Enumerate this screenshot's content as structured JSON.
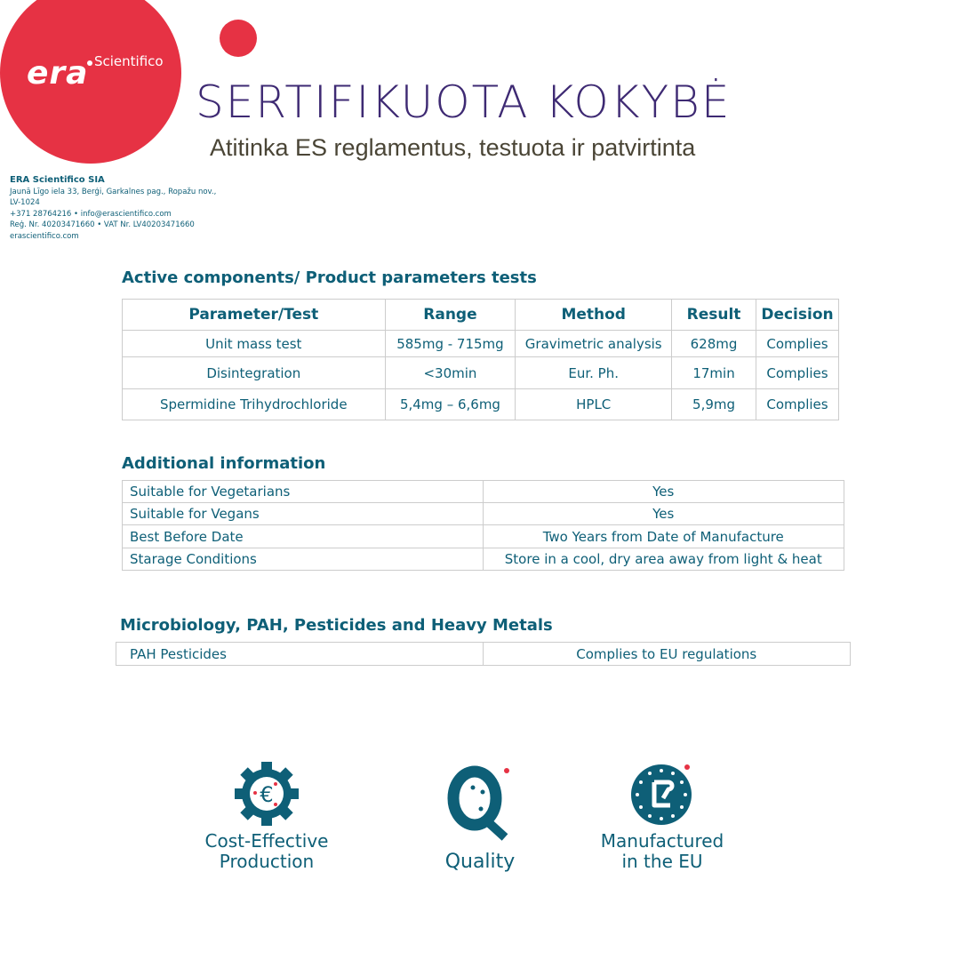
{
  "brand": {
    "logo_text": "era",
    "logo_sub": "Scientifico",
    "colors": {
      "red": "#e63244",
      "teal": "#0e5f77",
      "purple": "#3e2a73"
    }
  },
  "header": {
    "title": "SERTIFIKUOTA KOKYBĖ",
    "subtitle": "Atitinka ES reglamentus, testuota ir patvirtinta"
  },
  "company": {
    "name": "ERA Scientifico SIA",
    "address1": "Jaunā Līgo iela 33, Berģi, Garkalnes pag., Ropažu nov.,",
    "address2": "LV-1024",
    "contact": "+371 28764216 • info@erascientifico.com",
    "reg": "Reģ. Nr. 40203471660 • VAT Nr. LV40203471660",
    "web": "erascientifico.com"
  },
  "active": {
    "heading": "Active components/ Product parameters tests",
    "headers": [
      "Parameter/Test",
      "Range",
      "Method",
      "Result",
      "Decision"
    ],
    "rows": [
      [
        "Unit mass test",
        "585mg - 715mg",
        "Gravimetric analysis",
        "628mg",
        "Complies"
      ],
      [
        "Disintegration",
        "<30min",
        "Eur. Ph.",
        "17min",
        "Complies"
      ],
      [
        "Spermidine Trihydrochloride",
        "5,4mg – 6,6mg",
        "HPLC",
        "5,9mg",
        "Complies"
      ]
    ]
  },
  "additional": {
    "heading": "Additional information",
    "rows": [
      [
        "Suitable for Vegetarians",
        "Yes"
      ],
      [
        "Suitable for Vegans",
        "Yes"
      ],
      [
        "Best Before Date",
        "Two Years from Date of Manufacture"
      ],
      [
        "Starage Conditions",
        "Store in a cool, dry area away from light & heat"
      ]
    ]
  },
  "micro": {
    "heading": "Microbiology, PAH, Pesticides and Heavy Metals",
    "rows": [
      [
        "PAH Pesticides",
        "Complies to EU regulations"
      ]
    ]
  },
  "features": [
    {
      "icon": "gear-euro-icon",
      "l1": "Cost-Effective",
      "l2": "Production"
    },
    {
      "icon": "quality-q-icon",
      "l1": "Quality",
      "l2": ""
    },
    {
      "icon": "eu-stars-icon",
      "l1": "Manufactured",
      "l2": "in the EU"
    }
  ]
}
